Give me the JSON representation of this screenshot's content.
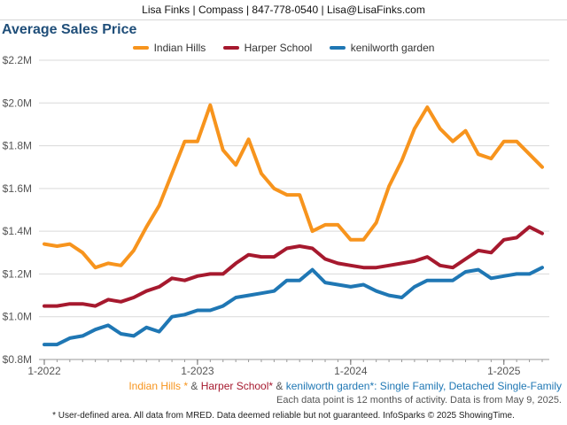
{
  "header": {
    "text": "Lisa Finks | Compass | 847-778-0540 | Lisa@LisaFinks.com"
  },
  "chart_data": {
    "type": "line",
    "title": "Average Sales Price",
    "ylim": [
      0.8,
      2.2
    ],
    "y_unit": "$M",
    "y_ticks": [
      0.8,
      1.0,
      1.2,
      1.4,
      1.6,
      1.8,
      2.0,
      2.2
    ],
    "y_tick_labels": [
      "$0.8M",
      "$1.0M",
      "$1.2M",
      "$1.4M",
      "$1.6M",
      "$1.8M",
      "$2.0M",
      "$2.2M"
    ],
    "x_ticks": [
      "2022-01",
      "2023-01",
      "2024-01",
      "2025-01"
    ],
    "x_tick_labels": [
      "1-2022",
      "1-2023",
      "1-2024",
      "1-2025"
    ],
    "x": [
      "2022-01",
      "2022-02",
      "2022-03",
      "2022-04",
      "2022-05",
      "2022-06",
      "2022-07",
      "2022-08",
      "2022-09",
      "2022-10",
      "2022-11",
      "2022-12",
      "2023-01",
      "2023-02",
      "2023-03",
      "2023-04",
      "2023-05",
      "2023-06",
      "2023-07",
      "2023-08",
      "2023-09",
      "2023-10",
      "2023-11",
      "2023-12",
      "2024-01",
      "2024-02",
      "2024-03",
      "2024-04",
      "2024-05",
      "2024-06",
      "2024-07",
      "2024-08",
      "2024-09",
      "2024-10",
      "2024-11",
      "2024-12",
      "2025-01",
      "2025-02",
      "2025-03",
      "2025-04"
    ],
    "grid": true,
    "legend_position": "top-center",
    "series": [
      {
        "name": "Indian Hills",
        "color": "#f7941d",
        "values": [
          1.34,
          1.33,
          1.34,
          1.3,
          1.23,
          1.25,
          1.24,
          1.31,
          1.42,
          1.52,
          1.67,
          1.82,
          1.82,
          1.99,
          1.78,
          1.71,
          1.83,
          1.67,
          1.6,
          1.57,
          1.57,
          1.4,
          1.43,
          1.43,
          1.36,
          1.36,
          1.44,
          1.61,
          1.73,
          1.88,
          1.98,
          1.88,
          1.82,
          1.87,
          1.76,
          1.74,
          1.82,
          1.82,
          1.76,
          1.7
        ]
      },
      {
        "name": "Harper School",
        "color": "#a6192e",
        "values": [
          1.05,
          1.05,
          1.06,
          1.06,
          1.05,
          1.08,
          1.07,
          1.09,
          1.12,
          1.14,
          1.18,
          1.17,
          1.19,
          1.2,
          1.2,
          1.25,
          1.29,
          1.28,
          1.28,
          1.32,
          1.33,
          1.32,
          1.27,
          1.25,
          1.24,
          1.23,
          1.23,
          1.24,
          1.25,
          1.26,
          1.28,
          1.24,
          1.23,
          1.27,
          1.31,
          1.3,
          1.36,
          1.37,
          1.42,
          1.39
        ]
      },
      {
        "name": "kenilworth garden",
        "color": "#1f77b4",
        "values": [
          0.87,
          0.87,
          0.9,
          0.91,
          0.94,
          0.96,
          0.92,
          0.91,
          0.95,
          0.93,
          1.0,
          1.01,
          1.03,
          1.03,
          1.05,
          1.09,
          1.1,
          1.11,
          1.12,
          1.17,
          1.17,
          1.22,
          1.16,
          1.15,
          1.14,
          1.15,
          1.12,
          1.1,
          1.09,
          1.14,
          1.17,
          1.17,
          1.17,
          1.21,
          1.22,
          1.18,
          1.19,
          1.2,
          1.2,
          1.23
        ]
      }
    ],
    "subtitle": {
      "parts": [
        {
          "text": "Indian Hills *",
          "color": "#f7941d"
        },
        {
          "text": " & ",
          "color": "#555555"
        },
        {
          "text": "Harper School*",
          "color": "#a6192e"
        },
        {
          "text": " & ",
          "color": "#555555"
        },
        {
          "text": "kenilworth garden*",
          "color": "#1f77b4"
        },
        {
          "text": ": Single Family, Detached Single-Family",
          "color": "#1f77b4"
        }
      ]
    },
    "note": "Each data point is 12 months of activity. Data is from May 9, 2025."
  },
  "footer": {
    "disclaimer": "* User-defined area. All data from MRED. Data deemed reliable but not guaranteed. InfoSparks © 2025 ShowingTime."
  }
}
